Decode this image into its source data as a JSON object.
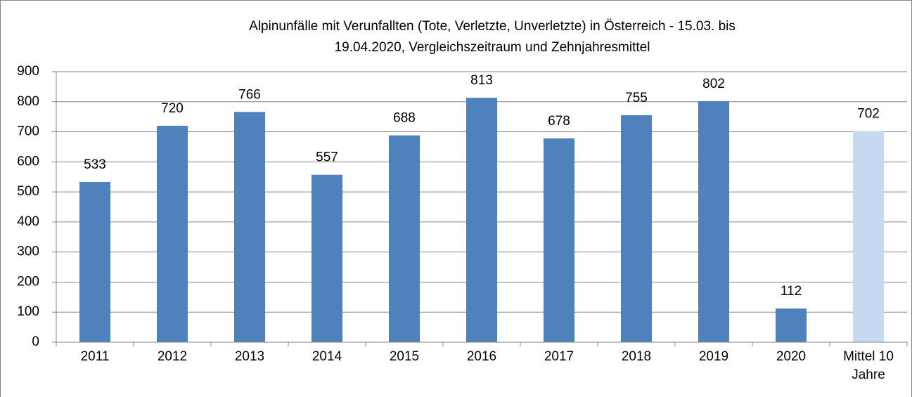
{
  "chart_data": {
    "type": "bar",
    "title": [
      "Alpinunfälle mit Verunfallten (Tote, Verletzte, Unverletzte) in Österreich - 15.03. bis",
      "19.04.2020, Vergleichszeitraum  und Zehnjahresmittel"
    ],
    "categories": [
      "2011",
      "2012",
      "2013",
      "2014",
      "2015",
      "2016",
      "2017",
      "2018",
      "2019",
      "2020",
      "Mittel 10 Jahre"
    ],
    "values": [
      533,
      720,
      766,
      557,
      688,
      813,
      678,
      755,
      802,
      112,
      702
    ],
    "colors": [
      "#4f81bd",
      "#4f81bd",
      "#4f81bd",
      "#4f81bd",
      "#4f81bd",
      "#4f81bd",
      "#4f81bd",
      "#4f81bd",
      "#4f81bd",
      "#4f81bd",
      "#c6d9f1"
    ],
    "ylim": [
      0,
      900
    ],
    "yticks": [
      0,
      100,
      200,
      300,
      400,
      500,
      600,
      700,
      800,
      900
    ],
    "grid": true
  }
}
